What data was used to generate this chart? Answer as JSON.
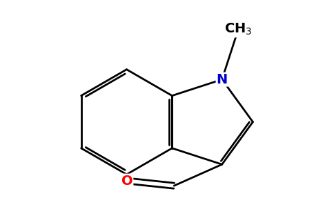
{
  "background_color": "#ffffff",
  "bond_color": "#000000",
  "nitrogen_color": "#0000cc",
  "oxygen_color": "#ff0000",
  "line_width": 2.0,
  "figsize": [
    4.84,
    3.0
  ],
  "dpi": 100
}
